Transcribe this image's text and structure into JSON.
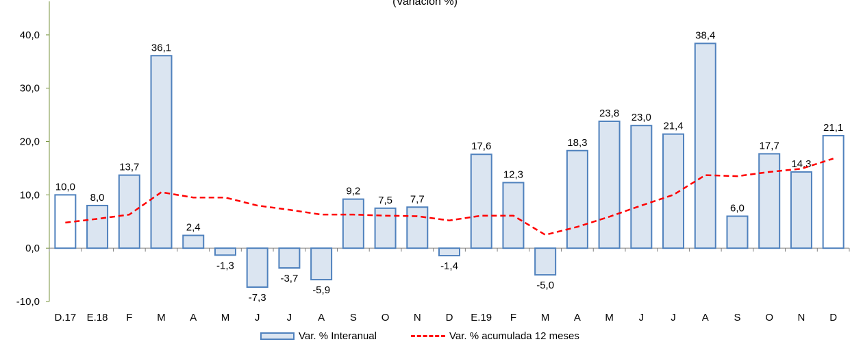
{
  "subtitle": "(Variación %)",
  "legend": {
    "bar_label": "Var. % Interanual",
    "line_label": "Var. % acumulada 12 meses"
  },
  "colors": {
    "bar_fill": "#dbe5f1",
    "bar_stroke": "#4f81bd",
    "highlight_bar_fill": "#ffffff",
    "line": "#ff0000",
    "y_axis": "#77933c",
    "x_axis": "#7f7f7f"
  },
  "chart_data": {
    "type": "bar",
    "categories": [
      "D.17",
      "E.18",
      "F",
      "M",
      "A",
      "M",
      "J",
      "J",
      "A",
      "S",
      "O",
      "N",
      "D",
      "E.19",
      "F",
      "M",
      "A",
      "M",
      "J",
      "J",
      "A",
      "S",
      "O",
      "N",
      "D"
    ],
    "series": [
      {
        "name": "Var. % Interanual",
        "type": "bar",
        "values": [
          10.0,
          8.0,
          13.7,
          36.1,
          2.4,
          -1.3,
          -7.3,
          -3.7,
          -5.9,
          9.2,
          7.5,
          7.7,
          -1.4,
          17.6,
          12.3,
          -5.0,
          18.3,
          23.8,
          23.0,
          21.4,
          38.4,
          6.0,
          17.7,
          14.3,
          21.1
        ],
        "labels": [
          "10,0",
          "8,0",
          "13,7",
          "36,1",
          "2,4",
          "-1,3",
          "-7,3",
          "-3,7",
          "-5,9",
          "9,2",
          "7,5",
          "7,7",
          "-1,4",
          "17,6",
          "12,3",
          "-5,0",
          "18,3",
          "23,8",
          "23,0",
          "21,4",
          "38,4",
          "6,0",
          "17,7",
          "14,3",
          "21,1"
        ],
        "highlighted_indices": [
          0,
          24
        ]
      },
      {
        "name": "Var. % acumulada 12 meses",
        "type": "line",
        "style": "dashed",
        "values": [
          4.8,
          5.5,
          6.3,
          10.5,
          9.5,
          9.5,
          8.0,
          7.2,
          6.3,
          6.3,
          6.1,
          6.0,
          5.2,
          6.1,
          6.1,
          2.5,
          4.0,
          5.9,
          8.0,
          10.0,
          13.7,
          13.5,
          14.3,
          14.9,
          16.8
        ]
      }
    ],
    "ylim": [
      -10,
      45
    ],
    "yticks": [
      -10,
      0,
      10,
      20,
      30,
      40
    ],
    "ytick_labels": [
      "-10,0",
      "0,0",
      "10,0",
      "20,0",
      "30,0",
      "40,0"
    ],
    "grid": false,
    "legend_position": "bottom"
  }
}
